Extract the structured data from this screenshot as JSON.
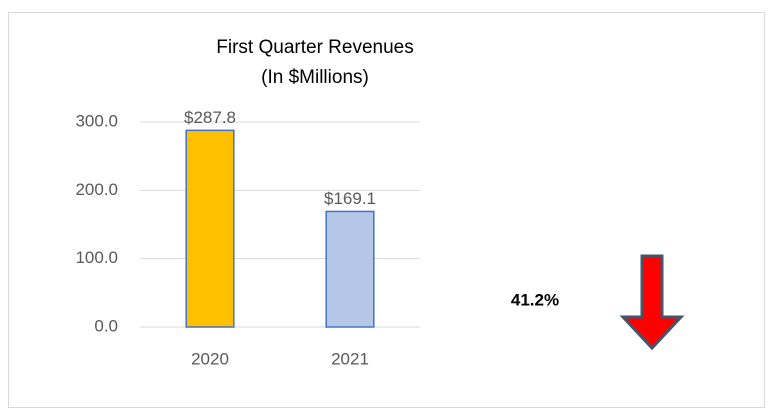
{
  "chart_data": {
    "type": "bar",
    "title": "First Quarter Revenues",
    "subtitle": "(In $Millions)",
    "categories": [
      "2020",
      "2021"
    ],
    "values": [
      287.8,
      169.1
    ],
    "value_labels": [
      "$287.8",
      "$169.1"
    ],
    "colors": [
      "#ffc000",
      "#b4c7e7"
    ],
    "ylim": [
      0,
      300
    ],
    "yticks": [
      {
        "value": 0,
        "label": "0.0"
      },
      {
        "value": 100,
        "label": "100.0"
      },
      {
        "value": 200,
        "label": "200.0"
      },
      {
        "value": 300,
        "label": "300.0"
      }
    ],
    "grid": true,
    "annotation": "41.2%"
  }
}
